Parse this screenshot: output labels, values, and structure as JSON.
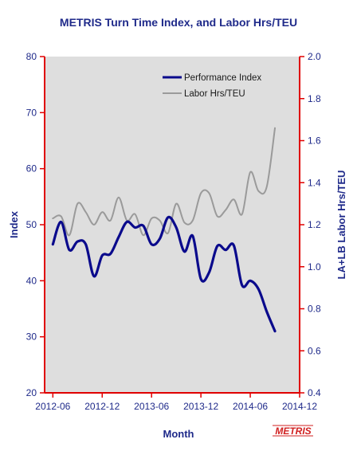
{
  "chart_data": {
    "type": "line",
    "title": "METRIS Turn Time Index, and Labor Hrs/TEU",
    "xlabel": "Month",
    "ylabel_left": "Index",
    "ylabel_right": "LA+LB Labor Hrs/TEU",
    "x_range": [
      "2012-05",
      "2014-12"
    ],
    "x_ticks": [
      "2012-06",
      "2012-12",
      "2013-06",
      "2013-12",
      "2014-06",
      "2014-12"
    ],
    "ylim_left": [
      20,
      80
    ],
    "yticks_left": [
      "20",
      "30",
      "40",
      "50",
      "60",
      "70",
      "80"
    ],
    "ylim_right": [
      0.4,
      2.0
    ],
    "yticks_right": [
      "0.4",
      "0.6",
      "0.8",
      "1.0",
      "1.2",
      "1.4",
      "1.6",
      "1.8",
      "2.0"
    ],
    "grid": false,
    "legend_position": "top-right",
    "series": [
      {
        "name": "Performance Index",
        "axis": "left",
        "color": "#0a0a8c",
        "points": [
          [
            "2012-06",
            46.5
          ],
          [
            "2012-07",
            50.5
          ],
          [
            "2012-08",
            45.5
          ],
          [
            "2012-09",
            47.0
          ],
          [
            "2012-10",
            46.5
          ],
          [
            "2012-11",
            40.8
          ],
          [
            "2012-12",
            44.5
          ],
          [
            "2013-01",
            44.8
          ],
          [
            "2013-02",
            47.8
          ],
          [
            "2013-03",
            50.5
          ],
          [
            "2013-04",
            49.5
          ],
          [
            "2013-05",
            49.8
          ],
          [
            "2013-06",
            46.5
          ],
          [
            "2013-07",
            47.5
          ],
          [
            "2013-08",
            51.3
          ],
          [
            "2013-09",
            49.5
          ],
          [
            "2013-10",
            45.2
          ],
          [
            "2013-11",
            48.0
          ],
          [
            "2013-12",
            40.3
          ],
          [
            "2014-01",
            41.5
          ],
          [
            "2014-02",
            46.2
          ],
          [
            "2014-03",
            45.5
          ],
          [
            "2014-04",
            46.3
          ],
          [
            "2014-05",
            39.2
          ],
          [
            "2014-06",
            40.0
          ],
          [
            "2014-07",
            38.5
          ],
          [
            "2014-08",
            34.5
          ],
          [
            "2014-09",
            31.0
          ]
        ]
      },
      {
        "name": "Labor Hrs/TEU",
        "axis": "right",
        "color": "#9a9a9a",
        "points": [
          [
            "2012-06",
            1.23
          ],
          [
            "2012-07",
            1.24
          ],
          [
            "2012-08",
            1.15
          ],
          [
            "2012-09",
            1.3
          ],
          [
            "2012-10",
            1.26
          ],
          [
            "2012-11",
            1.2
          ],
          [
            "2012-12",
            1.26
          ],
          [
            "2013-01",
            1.22
          ],
          [
            "2013-02",
            1.33
          ],
          [
            "2013-03",
            1.22
          ],
          [
            "2013-04",
            1.25
          ],
          [
            "2013-05",
            1.15
          ],
          [
            "2013-06",
            1.23
          ],
          [
            "2013-07",
            1.22
          ],
          [
            "2013-08",
            1.16
          ],
          [
            "2013-09",
            1.3
          ],
          [
            "2013-10",
            1.21
          ],
          [
            "2013-11",
            1.22
          ],
          [
            "2013-12",
            1.35
          ],
          [
            "2014-01",
            1.35
          ],
          [
            "2014-02",
            1.24
          ],
          [
            "2014-03",
            1.27
          ],
          [
            "2014-04",
            1.32
          ],
          [
            "2014-05",
            1.25
          ],
          [
            "2014-06",
            1.45
          ],
          [
            "2014-07",
            1.36
          ],
          [
            "2014-08",
            1.38
          ],
          [
            "2014-09",
            1.66
          ]
        ]
      }
    ]
  },
  "logo": {
    "text": "METRIS",
    "color": "#d02020"
  },
  "colors": {
    "axis_left": "#1f2a8a",
    "axis_right": "#e00000",
    "plot_background": "#dedede"
  }
}
